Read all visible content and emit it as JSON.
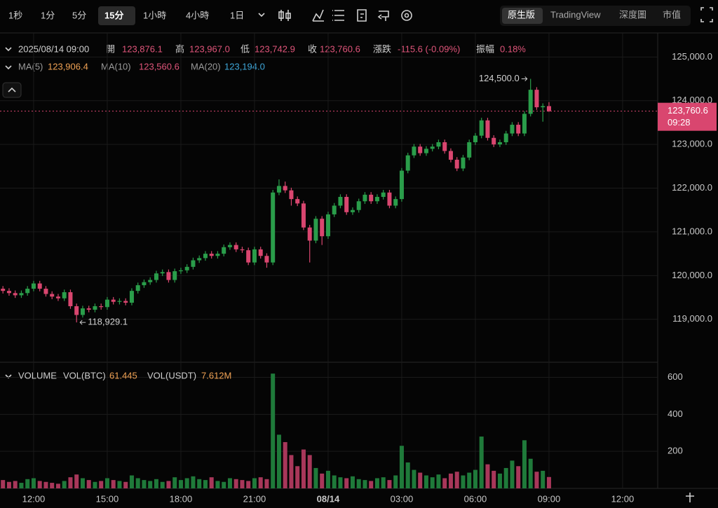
{
  "toolbar": {
    "intervals": [
      "1秒",
      "1分",
      "5分",
      "15分",
      "1小時",
      "4小時",
      "1日"
    ],
    "views": [
      "原生版",
      "TradingView",
      "深度圖",
      "市值"
    ]
  },
  "info": {
    "datetime": "2025/08/14 09:00",
    "fields": [
      {
        "label": "開",
        "value": "123,876.1"
      },
      {
        "label": "高",
        "value": "123,967.0"
      },
      {
        "label": "低",
        "value": "123,742.9"
      },
      {
        "label": "收",
        "value": "123,760.6"
      },
      {
        "label": "漲跌",
        "value": "-115.6 (-0.09%)"
      },
      {
        "label": "振幅",
        "value": "0.18%"
      }
    ],
    "indicators": [
      {
        "name": "MA(5)",
        "value": "123,906.4",
        "color": "#f0a254"
      },
      {
        "name": "MA(10)",
        "value": "123,560.6",
        "color": "#e0557a"
      },
      {
        "name": "MA(20)",
        "value": "123,194.0",
        "color": "#3ea6d8"
      }
    ]
  },
  "chart_data": [
    {
      "type": "candlestick",
      "up_color": "#2a9d4a",
      "down_color": "#d9466f",
      "x": [
        10.75,
        11,
        11.25,
        11.5,
        11.75,
        12,
        12.25,
        12.5,
        12.75,
        13,
        13.25,
        13.5,
        13.75,
        14,
        14.25,
        14.5,
        14.75,
        15,
        15.25,
        15.5,
        15.75,
        16,
        16.25,
        16.5,
        16.75,
        17,
        17.25,
        17.5,
        17.75,
        18,
        18.25,
        18.5,
        18.75,
        19,
        19.25,
        19.5,
        19.75,
        20,
        20.25,
        20.5,
        20.75,
        21,
        21.25,
        21.5,
        21.75,
        22,
        22.25,
        22.5,
        22.75,
        23,
        23.25,
        23.5,
        23.75,
        24,
        24.25,
        24.5,
        24.75,
        25,
        25.25,
        25.5,
        25.75,
        26,
        26.25,
        26.5,
        26.75,
        27,
        27.25,
        27.5,
        27.75,
        28,
        28.25,
        28.5,
        28.75,
        29,
        29.25,
        29.5,
        29.75,
        30,
        30.25,
        30.5,
        30.75,
        31,
        31.25,
        31.5,
        31.75,
        32,
        32.25,
        32.5,
        32.75,
        33
      ],
      "open": [
        119700,
        119650,
        119600,
        119550,
        119600,
        119700,
        119820,
        119700,
        119580,
        119520,
        119480,
        119620,
        119300,
        119100,
        119250,
        119220,
        119300,
        119280,
        119450,
        119400,
        119420,
        119380,
        119650,
        119780,
        119850,
        119900,
        120050,
        120080,
        119900,
        120100,
        120120,
        120200,
        120350,
        120400,
        120500,
        120450,
        120500,
        120650,
        120700,
        120600,
        120580,
        120300,
        120600,
        120450,
        120300,
        121900,
        122050,
        121950,
        121750,
        121650,
        121100,
        120800,
        121300,
        120900,
        121400,
        121600,
        121800,
        121450,
        121500,
        121700,
        121850,
        121700,
        121800,
        121900,
        121600,
        121750,
        122400,
        122750,
        122950,
        122800,
        122900,
        122950,
        123050,
        122850,
        122650,
        122450,
        122700,
        123050,
        123200,
        123550,
        123150,
        123000,
        123050,
        123250,
        123450,
        123250,
        123700,
        124250,
        123850,
        123876.1
      ],
      "high": [
        119760,
        119710,
        119660,
        119660,
        119760,
        119880,
        119880,
        119760,
        119640,
        119580,
        119680,
        119680,
        119360,
        119310,
        119310,
        119360,
        119360,
        119510,
        119510,
        119480,
        119480,
        119710,
        119840,
        119910,
        119960,
        120110,
        120140,
        120140,
        120160,
        120180,
        120260,
        120410,
        120460,
        120560,
        120560,
        120560,
        120710,
        120760,
        120760,
        120660,
        120640,
        120660,
        120660,
        120510,
        121960,
        122200,
        122150,
        122010,
        121810,
        121710,
        121160,
        121360,
        121360,
        121460,
        121660,
        121860,
        121860,
        121560,
        121760,
        121910,
        121910,
        121860,
        121960,
        121960,
        121810,
        122460,
        122810,
        123010,
        123010,
        122960,
        123010,
        123110,
        123110,
        122910,
        122710,
        122760,
        123110,
        123260,
        123610,
        123610,
        123210,
        123110,
        123310,
        123510,
        123510,
        123760,
        124500,
        124310,
        123940,
        123967
      ],
      "low": [
        119590,
        119540,
        119490,
        119490,
        119540,
        119640,
        119640,
        119520,
        119460,
        119420,
        119420,
        119240,
        118929.1,
        119040,
        119160,
        119160,
        119220,
        119220,
        119340,
        119340,
        119320,
        119320,
        119590,
        119720,
        119790,
        119840,
        119990,
        119840,
        119840,
        120040,
        120060,
        120140,
        120290,
        120340,
        120390,
        120390,
        120440,
        120590,
        120540,
        120520,
        120240,
        120240,
        120390,
        120180,
        120240,
        121840,
        121890,
        121600,
        121590,
        121040,
        120300,
        120740,
        120700,
        120840,
        121340,
        121540,
        121390,
        121390,
        121440,
        121640,
        121640,
        121640,
        121740,
        121540,
        121540,
        121690,
        122340,
        122690,
        122740,
        122740,
        122840,
        122890,
        122790,
        122590,
        122390,
        122390,
        122640,
        122990,
        123140,
        123090,
        122940,
        122940,
        122990,
        123190,
        123190,
        123190,
        123640,
        123790,
        123520,
        123742.9
      ],
      "close": [
        119650,
        119600,
        119550,
        119600,
        119700,
        119820,
        119700,
        119580,
        119520,
        119480,
        119620,
        119300,
        119100,
        119250,
        119220,
        119300,
        119280,
        119450,
        119400,
        119420,
        119380,
        119650,
        119780,
        119850,
        119900,
        120050,
        120080,
        119900,
        120100,
        120120,
        120200,
        120350,
        120400,
        120500,
        120450,
        120500,
        120650,
        120700,
        120600,
        120580,
        120300,
        120600,
        120450,
        120300,
        121900,
        122050,
        121950,
        121750,
        121650,
        121100,
        120800,
        121300,
        120900,
        121400,
        121600,
        121800,
        121450,
        121500,
        121700,
        121850,
        121700,
        121800,
        121900,
        121600,
        121750,
        122400,
        122750,
        122950,
        122800,
        122900,
        122950,
        123050,
        122850,
        122650,
        122450,
        122700,
        123050,
        123200,
        123550,
        123150,
        123000,
        123050,
        123250,
        123450,
        123250,
        123700,
        124250,
        123850,
        123876.1,
        123760.6
      ],
      "xlim": [
        10.63,
        37.43
      ],
      "xticks": [
        {
          "value": 12,
          "label": "12:00"
        },
        {
          "value": 15,
          "label": "15:00"
        },
        {
          "value": 18,
          "label": "18:00"
        },
        {
          "value": 21,
          "label": "21:00"
        },
        {
          "value": 24,
          "label": "08/14"
        },
        {
          "value": 27,
          "label": "03:00"
        },
        {
          "value": 30,
          "label": "06:00"
        },
        {
          "value": 33,
          "label": "09:00"
        },
        {
          "value": 36,
          "label": "12:00"
        }
      ],
      "ylim": [
        118050,
        125550
      ],
      "yticks": [
        {
          "value": 119000,
          "label": "119,000.0"
        },
        {
          "value": 120000,
          "label": "120,000.0"
        },
        {
          "value": 121000,
          "label": "121,000.0"
        },
        {
          "value": 122000,
          "label": "122,000.0"
        },
        {
          "value": 123000,
          "label": "123,000.0"
        },
        {
          "value": 124000,
          "label": "124,000.0"
        },
        {
          "value": 125000,
          "label": "125,000.0"
        }
      ],
      "last_price": {
        "value": 123760.6,
        "label": "123,760.6",
        "countdown": "09:28"
      },
      "annotations": [
        {
          "value": 124500,
          "label": "124,500.0"
        },
        {
          "value": 118929.1,
          "label": "118,929.1"
        }
      ]
    },
    {
      "type": "bar",
      "title": "VOLUME",
      "legend": [
        {
          "name": "VOL(BTC)",
          "value": "61.445"
        },
        {
          "name": "VOL(USDT)",
          "value": "7.612M"
        }
      ],
      "values": [
        45,
        35,
        40,
        30,
        50,
        55,
        40,
        35,
        30,
        25,
        40,
        60,
        75,
        55,
        45,
        35,
        40,
        55,
        45,
        40,
        35,
        70,
        55,
        45,
        40,
        50,
        35,
        40,
        60,
        45,
        55,
        65,
        50,
        45,
        60,
        40,
        35,
        55,
        50,
        45,
        40,
        55,
        60,
        50,
        620,
        290,
        250,
        180,
        120,
        210,
        180,
        110,
        80,
        95,
        70,
        60,
        55,
        65,
        50,
        45,
        40,
        55,
        60,
        45,
        70,
        230,
        140,
        100,
        85,
        70,
        60,
        75,
        55,
        80,
        90,
        70,
        85,
        100,
        280,
        130,
        95,
        80,
        110,
        150,
        120,
        260,
        160,
        90,
        95,
        61.445
      ],
      "ylim": [
        0,
        670
      ],
      "yticks": [
        200,
        400,
        600
      ]
    }
  ]
}
